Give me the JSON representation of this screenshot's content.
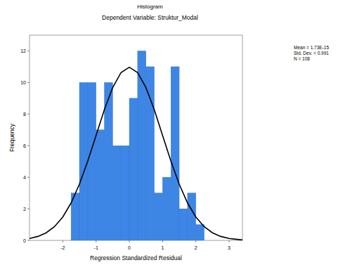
{
  "chart_data": {
    "type": "histogram",
    "title": "Histogram",
    "subtitle": "Dependent Variable: Struktur_Modal",
    "xlabel": "Regression Standardized Residual",
    "ylabel": "Frequency",
    "bins": [
      -1.75,
      -1.5,
      -1.25,
      -1,
      -0.75,
      -0.5,
      -0.25,
      0,
      0.25,
      0.5,
      0.75,
      1,
      1.25,
      1.5,
      1.75,
      2,
      2.25
    ],
    "values": [
      3,
      10,
      10,
      7,
      10,
      6,
      6,
      9,
      12,
      11,
      3,
      4,
      11,
      2,
      3,
      1
    ],
    "color": "#3d86e6",
    "xlim": [
      -3,
      3.4
    ],
    "xticks": [
      -2,
      -1,
      0,
      1,
      2,
      3
    ],
    "ylim": [
      0,
      13
    ],
    "yticks": [
      0,
      2,
      4,
      6,
      8,
      10,
      12
    ],
    "grid": false,
    "series": [
      {
        "type": "line",
        "color": "#000000",
        "x": [
          -3,
          -2.75,
          -2.5,
          -2.25,
          -2,
          -1.75,
          -1.5,
          -1.25,
          -1,
          -0.75,
          -0.5,
          -0.25,
          0,
          0.25,
          0.5,
          0.75,
          1,
          1.25,
          1.5,
          1.75,
          2,
          2.25,
          2.5,
          2.75,
          3,
          3.25,
          3.4
        ],
        "values": [
          0.12,
          0.25,
          0.48,
          0.87,
          1.48,
          2.37,
          3.56,
          5.02,
          6.65,
          8.28,
          9.68,
          10.63,
          10.97,
          10.63,
          9.68,
          8.28,
          6.65,
          5.02,
          3.56,
          2.37,
          1.48,
          0.87,
          0.48,
          0.25,
          0.12,
          0.06,
          0.03
        ]
      }
    ],
    "annotations": [
      "Mean = 1.73E-15",
      "Std. Dev. = 0.991",
      "N = 108"
    ]
  }
}
